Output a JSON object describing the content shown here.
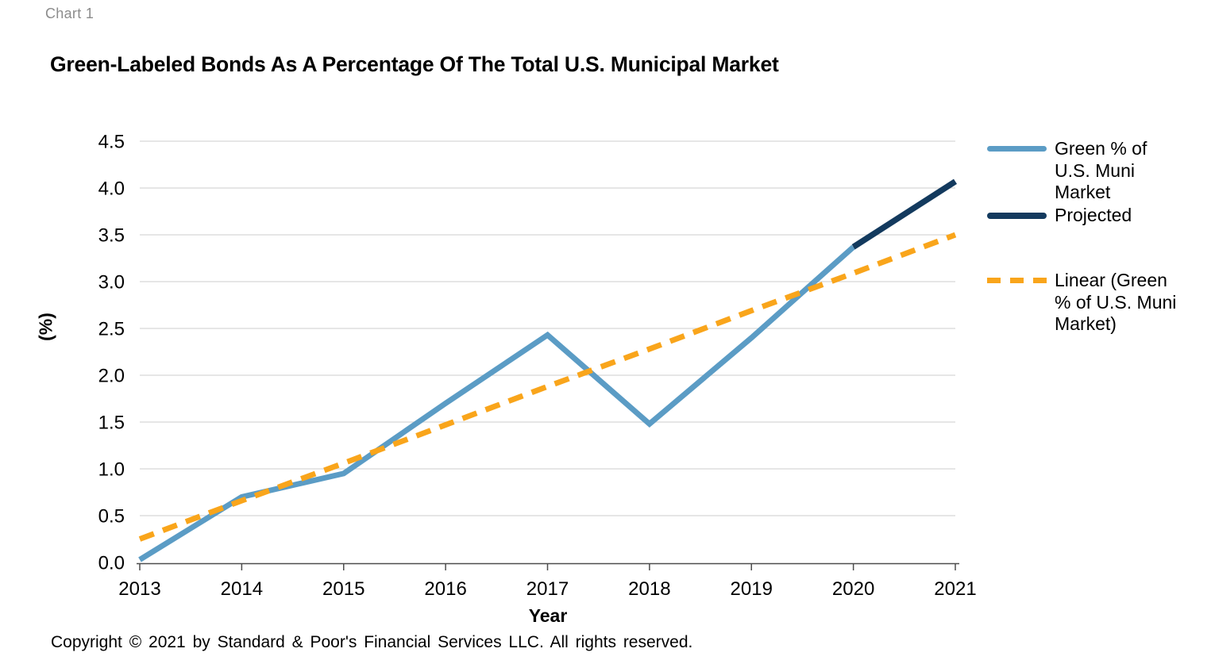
{
  "page": {
    "chart_label": "Chart 1",
    "title": "Green-Labeled Bonds As A Percentage Of The Total U.S. Municipal Market",
    "copyright": "Copyright © 2021 by Standard & Poor's Financial Services LLC. All rights reserved."
  },
  "chart_data": {
    "type": "line",
    "title": "Green-Labeled Bonds As A Percentage Of The Total U.S. Municipal Market",
    "xlabel": "Year",
    "ylabel": "(%)",
    "x": [
      2013,
      2014,
      2015,
      2016,
      2017,
      2018,
      2019,
      2020,
      2021
    ],
    "ylim": [
      0,
      4.5
    ],
    "ytick_step": 0.5,
    "grid": true,
    "legend_position": "right",
    "grid_color": "#d6d6d6",
    "axis_color": "#4d4d4d",
    "series": [
      {
        "name": "Green % of U.S. Muni Market",
        "color": "#5b9cc5",
        "style": "solid",
        "values": [
          0.03,
          0.7,
          0.95,
          1.7,
          2.43,
          1.48,
          2.4,
          3.37,
          null
        ]
      },
      {
        "name": "Projected",
        "color": "#133a5e",
        "style": "solid",
        "values": [
          null,
          null,
          null,
          null,
          null,
          null,
          null,
          3.37,
          4.07
        ]
      },
      {
        "name": "Linear (Green % of U.S. Muni Market)",
        "color": "#f9a51b",
        "style": "dashed",
        "values": [
          0.25,
          0.66,
          1.06,
          1.47,
          1.88,
          2.28,
          2.69,
          3.09,
          3.5
        ]
      }
    ]
  }
}
